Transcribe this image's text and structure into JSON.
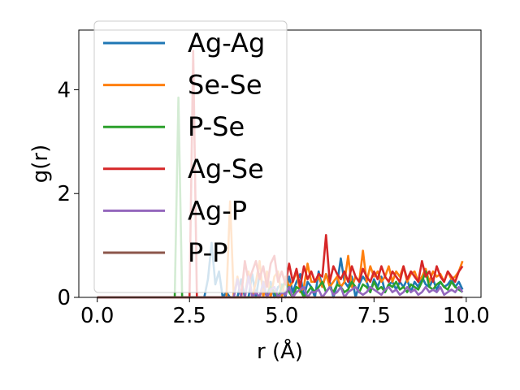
{
  "chart_data": {
    "type": "line",
    "xlabel": "r (Å)",
    "ylabel": "g(r)",
    "xlim": [
      -0.5,
      10.4
    ],
    "ylim": [
      0,
      5.15
    ],
    "xticks": [
      0.0,
      2.5,
      5.0,
      7.5,
      10.0
    ],
    "xtick_labels": [
      "0.0",
      "2.5",
      "5.0",
      "7.5",
      "10.0"
    ],
    "yticks": [
      0,
      2,
      4
    ],
    "ytick_labels": [
      "0",
      "2",
      "4"
    ],
    "grid": false,
    "legend_position": "top-left",
    "x_step": 0.1,
    "series": [
      {
        "name": "Ag-Ag",
        "color": "#1f77b4",
        "values": [
          0,
          0,
          0,
          0,
          0,
          0,
          0,
          0,
          0,
          0,
          0,
          0,
          0,
          0,
          0,
          0,
          0,
          0,
          0,
          0,
          0,
          0,
          0,
          0,
          0,
          0,
          0,
          0,
          0,
          0,
          0.35,
          1.05,
          0.25,
          0.5,
          0,
          0.1,
          0,
          0,
          0,
          0.35,
          0,
          0,
          0.45,
          0,
          0.45,
          0.2,
          0,
          0.3,
          0,
          0.2,
          0.25,
          0,
          0.4,
          0.1,
          0.3,
          0.45,
          0,
          0.3,
          0.2,
          0,
          0.5,
          0.2,
          0.45,
          0.3,
          0,
          0.25,
          0.75,
          0.3,
          0.2,
          0.4,
          0,
          0.25,
          0.4,
          0.3,
          0.1,
          0.35,
          0.2,
          0.4,
          0.1,
          0.25,
          0.3,
          0.15,
          0.3,
          0.2,
          0.35,
          0.1,
          0.3,
          0.2,
          0.4,
          0.25,
          0.2,
          0.35,
          0.15,
          0.3,
          0.2,
          0.25,
          0.35,
          0.2,
          0.3,
          0.15
        ]
      },
      {
        "name": "Se-Se",
        "color": "#ff7f0e",
        "values": [
          0,
          0,
          0,
          0,
          0,
          0,
          0,
          0,
          0,
          0,
          0,
          0,
          0,
          0,
          0,
          0,
          0,
          0,
          0,
          0,
          0,
          0,
          0,
          0,
          0,
          0,
          0,
          0,
          0,
          0,
          0,
          0,
          0,
          0,
          0,
          0,
          1.85,
          0,
          0.4,
          0,
          0,
          0.5,
          0,
          0.3,
          0.7,
          0,
          0.5,
          0,
          0.4,
          0.5,
          0,
          0.4,
          0.2,
          0.3,
          0.5,
          0.1,
          0.2,
          0.65,
          0.3,
          0.3,
          0.4,
          0.2,
          0.45,
          0.2,
          0.3,
          0.4,
          0.2,
          0.3,
          0.8,
          0.2,
          0.4,
          0.3,
          0.9,
          0.3,
          0.6,
          0.4,
          0.5,
          0.3,
          0.4,
          0.6,
          0.3,
          0.5,
          0.4,
          0.6,
          0.3,
          0.45,
          0.5,
          0.3,
          0.4,
          0.55,
          0.3,
          0.5,
          0.4,
          0.45,
          0.3,
          0.5,
          0.35,
          0.4,
          0.5,
          0.7
        ]
      },
      {
        "name": "P-Se",
        "color": "#2ca02c",
        "values": [
          0,
          0,
          0,
          0,
          0,
          0,
          0,
          0,
          0,
          0,
          0,
          0,
          0,
          0,
          0,
          0,
          0,
          0,
          0,
          0,
          0,
          0,
          3.85,
          0,
          0,
          0,
          0,
          0,
          0,
          0,
          0,
          0,
          0,
          0,
          0,
          0,
          0,
          0,
          0,
          0,
          0,
          0,
          0,
          0,
          0,
          0.3,
          0,
          0.2,
          0.1,
          0,
          0.2,
          0.3,
          0.1,
          0,
          0.2,
          0.15,
          0,
          0.1,
          0.2,
          0.1,
          0.2,
          0.3,
          0.1,
          0.2,
          0.1,
          0.25,
          0.2,
          0.1,
          0.15,
          0.3,
          0.2,
          0.1,
          0.25,
          0.2,
          0.1,
          0.3,
          0.15,
          0.2,
          0.1,
          0.25,
          0.2,
          0.3,
          0.15,
          0.2,
          0.1,
          0.25,
          0.2,
          0.15,
          0.3,
          0.5,
          0.2,
          0.15,
          0.25,
          0.3,
          0.2,
          0.15,
          0.3,
          0.2,
          0.15,
          0.1
        ]
      },
      {
        "name": "Ag-Se",
        "color": "#d62728",
        "values": [
          0,
          0,
          0,
          0,
          0,
          0,
          0,
          0,
          0,
          0,
          0,
          0,
          0,
          0,
          0,
          0,
          0,
          0,
          0,
          0,
          0,
          0,
          0,
          0,
          0,
          0,
          4.75,
          0,
          0,
          0,
          0,
          0,
          0,
          0,
          0,
          0,
          0,
          0,
          0,
          0,
          0.7,
          0.3,
          0.5,
          0.7,
          0.35,
          0.6,
          0.2,
          0.65,
          0.8,
          0.3,
          0.5,
          0.25,
          0.65,
          0.3,
          0.55,
          0.2,
          0.6,
          0.35,
          0.5,
          0.3,
          0.45,
          0.4,
          1.2,
          0.3,
          0.6,
          0.45,
          0.35,
          0.5,
          0.3,
          0.6,
          0.4,
          0.3,
          0.55,
          0.4,
          0.3,
          0.5,
          0.35,
          0.6,
          0.4,
          0.3,
          0.5,
          0.4,
          0.3,
          0.6,
          0.35,
          0.5,
          0.4,
          0.3,
          0.7,
          0.4,
          0.5,
          0.3,
          0.6,
          0.4,
          0.3,
          0.5,
          0.4,
          0.3,
          0.5,
          0.6
        ]
      },
      {
        "name": "Ag-P",
        "color": "#9467bd",
        "values": [
          0,
          0,
          0,
          0,
          0,
          0,
          0,
          0,
          0,
          0,
          0,
          0,
          0,
          0,
          0,
          0,
          0,
          0,
          0,
          0,
          0,
          0,
          0,
          0,
          0,
          0,
          0,
          0,
          0,
          0,
          0,
          0,
          0,
          0,
          0,
          0,
          0,
          0,
          0.35,
          0,
          0,
          0.4,
          0,
          0.1,
          0,
          0.3,
          0,
          0.15,
          0.2,
          0,
          0.1,
          0.05,
          0.2,
          0,
          0.1,
          0.15,
          0.2,
          0,
          0.1,
          0.1,
          0.15,
          0,
          0.1,
          0.2,
          0.05,
          0.1,
          0.2,
          0,
          0.1,
          0.15,
          0.2,
          0.1,
          0.05,
          0.1,
          0.2,
          0.15,
          0.1,
          0.05,
          0.15,
          0.2,
          0.1,
          0.15,
          0.05,
          0.1,
          0.2,
          0.1,
          0.15,
          0.05,
          0.1,
          0.2,
          0.1,
          0.15,
          0.1,
          0.2,
          0.05,
          0.1,
          0.15,
          0.1,
          0.2,
          0.1
        ]
      },
      {
        "name": "P-P",
        "color": "#8c564b",
        "values": [
          0,
          0,
          0,
          0,
          0,
          0,
          0,
          0,
          0,
          0,
          0,
          0,
          0,
          0,
          0,
          0,
          0,
          0,
          0,
          0,
          0,
          0,
          0,
          0,
          0,
          0,
          0,
          0,
          0,
          0,
          0,
          0,
          0,
          0,
          0,
          0,
          0,
          0,
          0,
          0,
          0,
          0,
          0,
          0,
          0,
          0,
          0,
          0,
          0,
          0,
          0,
          0,
          0,
          0,
          0,
          0,
          0,
          0,
          0,
          0,
          0,
          0,
          0,
          0,
          0,
          0,
          0,
          0,
          0,
          0,
          0,
          0,
          0,
          0,
          0,
          0,
          0,
          0,
          0,
          0,
          0,
          0,
          0,
          0,
          0,
          0,
          0,
          0,
          0,
          0,
          0,
          0,
          0,
          0,
          0,
          0,
          0,
          0,
          0,
          0
        ]
      }
    ]
  }
}
